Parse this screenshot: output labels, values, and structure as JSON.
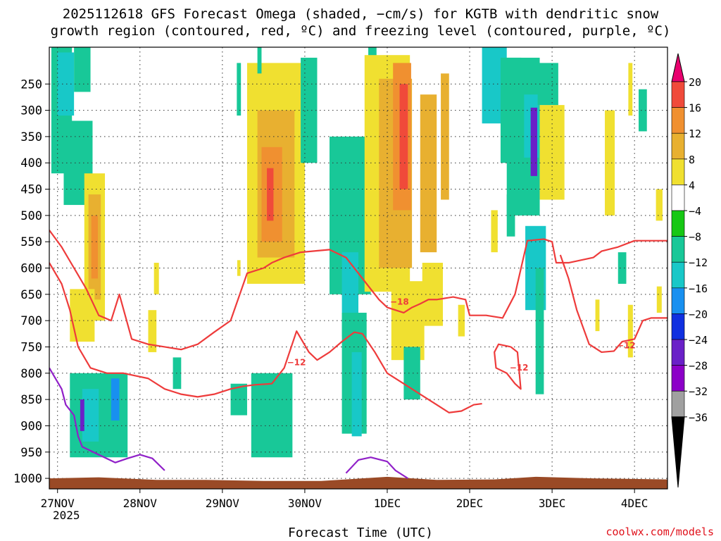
{
  "title_line1": "2025112618 GFS Forecast Omega (shaded, −cm/s) for KGTB with dendritic snow",
  "title_line2": "growth region (contoured, red, ºC) and freezing level (contoured, purple, ºC)",
  "credit": "coolwx.com/models",
  "chart_data": {
    "type": "heatmap",
    "title": "2025112618 GFS Forecast Omega (shaded, −cm/s) for KGTB with dendritic snow growth region (contoured, red, ºC) and freezing level (contoured, purple, ºC)",
    "xlabel": "Forecast Time (UTC)",
    "ylabel": "",
    "x_ticks": [
      "27NOV",
      "28NOV",
      "29NOV",
      "30NOV",
      "1DEC",
      "2DEC",
      "3DEC",
      "4DEC"
    ],
    "x_year": "2025",
    "x_range_days": [
      -0.1,
      7.4
    ],
    "y_ticks": [
      250,
      300,
      350,
      400,
      450,
      500,
      550,
      600,
      650,
      700,
      750,
      800,
      850,
      900,
      950,
      1000
    ],
    "y_range_hpa": [
      180,
      1020
    ],
    "colorbar": {
      "levels": [
        -36,
        -32,
        -28,
        -24,
        -20,
        -16,
        -12,
        -8,
        -4,
        4,
        8,
        12,
        16,
        20
      ],
      "label_values": [
        "20",
        "16",
        "12",
        "8",
        "4",
        "−4",
        "−8",
        "−12",
        "−16",
        "−20",
        "−24",
        "−28",
        "−32",
        "−36"
      ],
      "colors_low_to_high": [
        "#000000",
        "#a0a0a0",
        "#8c00c8",
        "#6a20c8",
        "#1030e0",
        "#1890f0",
        "#18c8c8",
        "#18c898",
        "#16c814",
        "#ffffff",
        "#f0e030",
        "#e8b030",
        "#f09030",
        "#f04a3a",
        "#e8006e"
      ]
    },
    "omega_cells": [
      {
        "x": 0.05,
        "p": 300,
        "w": 0.25,
        "h": 240,
        "v": -8
      },
      {
        "x": 0.1,
        "p": 250,
        "w": 0.2,
        "h": 120,
        "v": -13
      },
      {
        "x": 0.3,
        "p": 220,
        "w": 0.2,
        "h": 90,
        "v": -9
      },
      {
        "x": 0.25,
        "p": 400,
        "w": 0.35,
        "h": 160,
        "v": -8
      },
      {
        "x": 0.45,
        "p": 560,
        "w": 0.25,
        "h": 280,
        "v": 6
      },
      {
        "x": 0.45,
        "p": 560,
        "w": 0.15,
        "h": 200,
        "v": 10
      },
      {
        "x": 0.45,
        "p": 560,
        "w": 0.08,
        "h": 120,
        "v": 15
      },
      {
        "x": 0.3,
        "p": 690,
        "w": 0.3,
        "h": 100,
        "v": 6
      },
      {
        "x": 0.5,
        "p": 880,
        "w": 0.7,
        "h": 160,
        "v": -9
      },
      {
        "x": 0.4,
        "p": 880,
        "w": 0.2,
        "h": 100,
        "v": -14
      },
      {
        "x": 0.3,
        "p": 880,
        "w": 0.05,
        "h": 60,
        "v": -24
      },
      {
        "x": 0.7,
        "p": 850,
        "w": 0.1,
        "h": 80,
        "v": -18
      },
      {
        "x": 1.15,
        "p": 720,
        "w": 0.1,
        "h": 80,
        "v": 6
      },
      {
        "x": 1.45,
        "p": 800,
        "w": 0.1,
        "h": 60,
        "v": -8
      },
      {
        "x": 1.2,
        "p": 620,
        "w": 0.06,
        "h": 60,
        "v": 6
      },
      {
        "x": 2.65,
        "p": 420,
        "w": 0.7,
        "h": 420,
        "v": 6
      },
      {
        "x": 2.65,
        "p": 440,
        "w": 0.45,
        "h": 280,
        "v": 9
      },
      {
        "x": 2.6,
        "p": 460,
        "w": 0.25,
        "h": 180,
        "v": 13
      },
      {
        "x": 2.58,
        "p": 460,
        "w": 0.08,
        "h": 100,
        "v": 17
      },
      {
        "x": 2.6,
        "p": 880,
        "w": 0.5,
        "h": 160,
        "v": -9
      },
      {
        "x": 2.2,
        "p": 850,
        "w": 0.2,
        "h": 60,
        "v": -8
      },
      {
        "x": 2.2,
        "p": 600,
        "w": 0.04,
        "h": 30,
        "v": 6
      },
      {
        "x": 2.2,
        "p": 260,
        "w": 0.05,
        "h": 100,
        "v": -8
      },
      {
        "x": 2.45,
        "p": 200,
        "w": 0.05,
        "h": 60,
        "v": -9
      },
      {
        "x": 3.05,
        "p": 300,
        "w": 0.2,
        "h": 200,
        "v": -8
      },
      {
        "x": 3.35,
        "p": 450,
        "w": 0.1,
        "h": 60,
        "v": -8
      },
      {
        "x": 3.55,
        "p": 500,
        "w": 0.5,
        "h": 300,
        "v": -8
      },
      {
        "x": 3.55,
        "p": 650,
        "w": 0.2,
        "h": 160,
        "v": -12
      },
      {
        "x": 3.6,
        "p": 800,
        "w": 0.3,
        "h": 230,
        "v": -9
      },
      {
        "x": 3.63,
        "p": 840,
        "w": 0.12,
        "h": 160,
        "v": -14
      },
      {
        "x": 3.82,
        "p": 400,
        "w": 0.1,
        "h": 450,
        "v": -9
      },
      {
        "x": 4.0,
        "p": 420,
        "w": 0.55,
        "h": 450,
        "v": 6
      },
      {
        "x": 4.1,
        "p": 420,
        "w": 0.4,
        "h": 360,
        "v": 10
      },
      {
        "x": 4.18,
        "p": 350,
        "w": 0.22,
        "h": 280,
        "v": 13
      },
      {
        "x": 4.2,
        "p": 350,
        "w": 0.1,
        "h": 200,
        "v": 18
      },
      {
        "x": 4.5,
        "p": 420,
        "w": 0.2,
        "h": 300,
        "v": 11
      },
      {
        "x": 4.7,
        "p": 350,
        "w": 0.1,
        "h": 240,
        "v": 9
      },
      {
        "x": 4.25,
        "p": 700,
        "w": 0.4,
        "h": 150,
        "v": 6
      },
      {
        "x": 4.55,
        "p": 650,
        "w": 0.25,
        "h": 120,
        "v": 6
      },
      {
        "x": 4.3,
        "p": 800,
        "w": 0.2,
        "h": 100,
        "v": -8
      },
      {
        "x": 4.9,
        "p": 700,
        "w": 0.08,
        "h": 60,
        "v": 6
      },
      {
        "x": 5.3,
        "p": 250,
        "w": 0.3,
        "h": 150,
        "v": -12
      },
      {
        "x": 5.5,
        "p": 300,
        "w": 0.25,
        "h": 200,
        "v": -8
      },
      {
        "x": 5.65,
        "p": 350,
        "w": 0.4,
        "h": 300,
        "v": -8
      },
      {
        "x": 5.75,
        "p": 330,
        "w": 0.18,
        "h": 120,
        "v": -14
      },
      {
        "x": 5.78,
        "p": 360,
        "w": 0.08,
        "h": 130,
        "v": -26
      },
      {
        "x": 6.0,
        "p": 380,
        "w": 0.3,
        "h": 180,
        "v": 6
      },
      {
        "x": 5.8,
        "p": 600,
        "w": 0.25,
        "h": 160,
        "v": -12
      },
      {
        "x": 5.85,
        "p": 720,
        "w": 0.1,
        "h": 240,
        "v": -10
      },
      {
        "x": 5.5,
        "p": 500,
        "w": 0.1,
        "h": 80,
        "v": -8
      },
      {
        "x": 5.3,
        "p": 530,
        "w": 0.08,
        "h": 80,
        "v": 6
      },
      {
        "x": 5.95,
        "p": 250,
        "w": 0.25,
        "h": 80,
        "v": -8
      },
      {
        "x": 6.7,
        "p": 400,
        "w": 0.12,
        "h": 200,
        "v": 8
      },
      {
        "x": 6.95,
        "p": 260,
        "w": 0.05,
        "h": 100,
        "v": 6
      },
      {
        "x": 7.1,
        "p": 300,
        "w": 0.1,
        "h": 80,
        "v": -8
      },
      {
        "x": 7.3,
        "p": 480,
        "w": 0.08,
        "h": 60,
        "v": 6
      },
      {
        "x": 6.85,
        "p": 600,
        "w": 0.1,
        "h": 60,
        "v": -8
      },
      {
        "x": 6.95,
        "p": 720,
        "w": 0.06,
        "h": 100,
        "v": 6
      },
      {
        "x": 7.3,
        "p": 660,
        "w": 0.06,
        "h": 50,
        "v": 6
      },
      {
        "x": 6.55,
        "p": 690,
        "w": 0.05,
        "h": 60,
        "v": 6
      }
    ],
    "dendritic_contours": [
      {
        "label": "−18",
        "points": [
          [
            -0.1,
            528
          ],
          [
            0.05,
            560
          ],
          [
            0.2,
            600
          ],
          [
            0.35,
            640
          ],
          [
            0.5,
            690
          ],
          [
            0.65,
            700
          ],
          [
            0.75,
            650
          ],
          [
            0.9,
            735
          ],
          [
            1.1,
            745
          ],
          [
            1.3,
            750
          ],
          [
            1.5,
            755
          ],
          [
            1.7,
            745
          ],
          [
            1.9,
            722
          ],
          [
            2.1,
            700
          ],
          [
            2.3,
            610
          ],
          [
            2.5,
            600
          ],
          [
            2.6,
            590
          ],
          [
            2.75,
            580
          ],
          [
            2.95,
            570
          ],
          [
            3.3,
            565
          ],
          [
            3.5,
            580
          ],
          [
            3.7,
            620
          ],
          [
            3.9,
            660
          ],
          [
            4.0,
            675
          ],
          [
            4.2,
            685
          ],
          [
            4.3,
            675
          ],
          [
            4.4,
            668
          ],
          [
            4.5,
            660
          ],
          [
            4.6,
            660
          ],
          [
            4.8,
            655
          ],
          [
            4.95,
            660
          ],
          [
            5.0,
            690
          ],
          [
            5.2,
            690
          ],
          [
            5.4,
            695
          ],
          [
            5.55,
            650
          ],
          [
            5.7,
            548
          ],
          [
            5.9,
            545
          ],
          [
            6.0,
            550
          ],
          [
            6.05,
            590
          ],
          [
            6.2,
            590
          ],
          [
            6.35,
            585
          ],
          [
            6.5,
            580
          ],
          [
            6.6,
            568
          ],
          [
            6.8,
            560
          ],
          [
            7.0,
            548
          ],
          [
            7.4,
            548
          ]
        ]
      },
      {
        "label": "−12",
        "points": [
          [
            -0.1,
            590
          ],
          [
            0.05,
            630
          ],
          [
            0.15,
            680
          ],
          [
            0.25,
            750
          ],
          [
            0.4,
            790
          ],
          [
            0.6,
            800
          ],
          [
            0.8,
            800
          ],
          [
            0.95,
            805
          ],
          [
            1.1,
            810
          ],
          [
            1.3,
            830
          ],
          [
            1.5,
            840
          ],
          [
            1.7,
            845
          ],
          [
            1.9,
            840
          ],
          [
            2.1,
            830
          ],
          [
            2.25,
            825
          ],
          [
            2.4,
            822
          ],
          [
            2.6,
            820
          ],
          [
            2.75,
            790
          ],
          [
            2.9,
            720
          ],
          [
            3.05,
            760
          ],
          [
            3.15,
            775
          ],
          [
            3.3,
            760
          ],
          [
            3.45,
            740
          ],
          [
            3.6,
            722
          ],
          [
            3.7,
            725
          ],
          [
            3.85,
            760
          ],
          [
            4.0,
            800
          ],
          [
            4.2,
            820
          ],
          [
            4.4,
            840
          ],
          [
            4.6,
            860
          ],
          [
            4.75,
            875
          ],
          [
            4.9,
            872
          ],
          [
            5.05,
            860
          ],
          [
            5.15,
            858
          ]
        ]
      },
      {
        "label": "−12",
        "points": [
          [
            6.1,
            575
          ],
          [
            6.2,
            620
          ],
          [
            6.3,
            680
          ],
          [
            6.45,
            745
          ],
          [
            6.6,
            760
          ],
          [
            6.75,
            758
          ],
          [
            6.85,
            740
          ],
          [
            7.0,
            735
          ],
          [
            7.1,
            700
          ],
          [
            7.2,
            695
          ],
          [
            7.4,
            695
          ]
        ]
      },
      {
        "label": "−12",
        "points": [
          [
            5.5,
            750
          ],
          [
            5.35,
            745
          ],
          [
            5.3,
            760
          ],
          [
            5.32,
            790
          ],
          [
            5.45,
            800
          ],
          [
            5.55,
            820
          ],
          [
            5.62,
            830
          ],
          [
            5.58,
            760
          ],
          [
            5.5,
            750
          ]
        ]
      }
    ],
    "freezing_contours": [
      {
        "label": "",
        "points": [
          [
            -0.1,
            790
          ],
          [
            0.05,
            830
          ],
          [
            0.1,
            860
          ],
          [
            0.2,
            880
          ],
          [
            0.25,
            920
          ],
          [
            0.3,
            940
          ],
          [
            0.5,
            955
          ],
          [
            0.7,
            970
          ],
          [
            0.85,
            962
          ],
          [
            1.0,
            955
          ],
          [
            1.15,
            962
          ],
          [
            1.3,
            985
          ]
        ]
      },
      {
        "label": "",
        "points": [
          [
            3.5,
            990
          ],
          [
            3.65,
            965
          ],
          [
            3.8,
            960
          ],
          [
            4.0,
            968
          ],
          [
            4.1,
            985
          ],
          [
            4.25,
            1000
          ]
        ]
      }
    ]
  }
}
